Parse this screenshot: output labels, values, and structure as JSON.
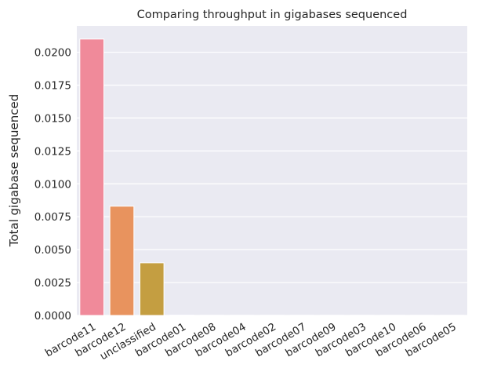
{
  "chart_data": {
    "type": "bar",
    "title": "Comparing throughput in gigabases sequenced",
    "xlabel": "",
    "ylabel": "Total gigabase sequenced",
    "ylim": [
      0,
      0.022
    ],
    "grid": true,
    "categories": [
      "barcode11",
      "barcode12",
      "unclassified",
      "barcode01",
      "barcode08",
      "barcode04",
      "barcode02",
      "barcode07",
      "barcode09",
      "barcode03",
      "barcode10",
      "barcode06",
      "barcode05"
    ],
    "values": [
      0.021,
      0.0083,
      0.004,
      2e-05,
      1e-05,
      1e-05,
      1e-05,
      1e-05,
      1e-05,
      1e-05,
      1e-05,
      1e-05,
      1e-05
    ],
    "yticks": [
      0,
      0.0025,
      0.005,
      0.0075,
      0.01,
      0.0125,
      0.015,
      0.0175,
      0.02
    ],
    "ytick_labels": [
      "0.0000",
      "0.0025",
      "0.0050",
      "0.0075",
      "0.0100",
      "0.0125",
      "0.0150",
      "0.0175",
      "0.0200"
    ],
    "colors": [
      "#f08a9a",
      "#e8935e",
      "#c49e41",
      "#a7a841",
      "#7fb244",
      "#4bb74f",
      "#4cb68a",
      "#4ab3a6",
      "#4db0bc",
      "#52abd4",
      "#8d9ff0",
      "#c08df0",
      "#e383df"
    ],
    "background": "#eaeaf2"
  }
}
